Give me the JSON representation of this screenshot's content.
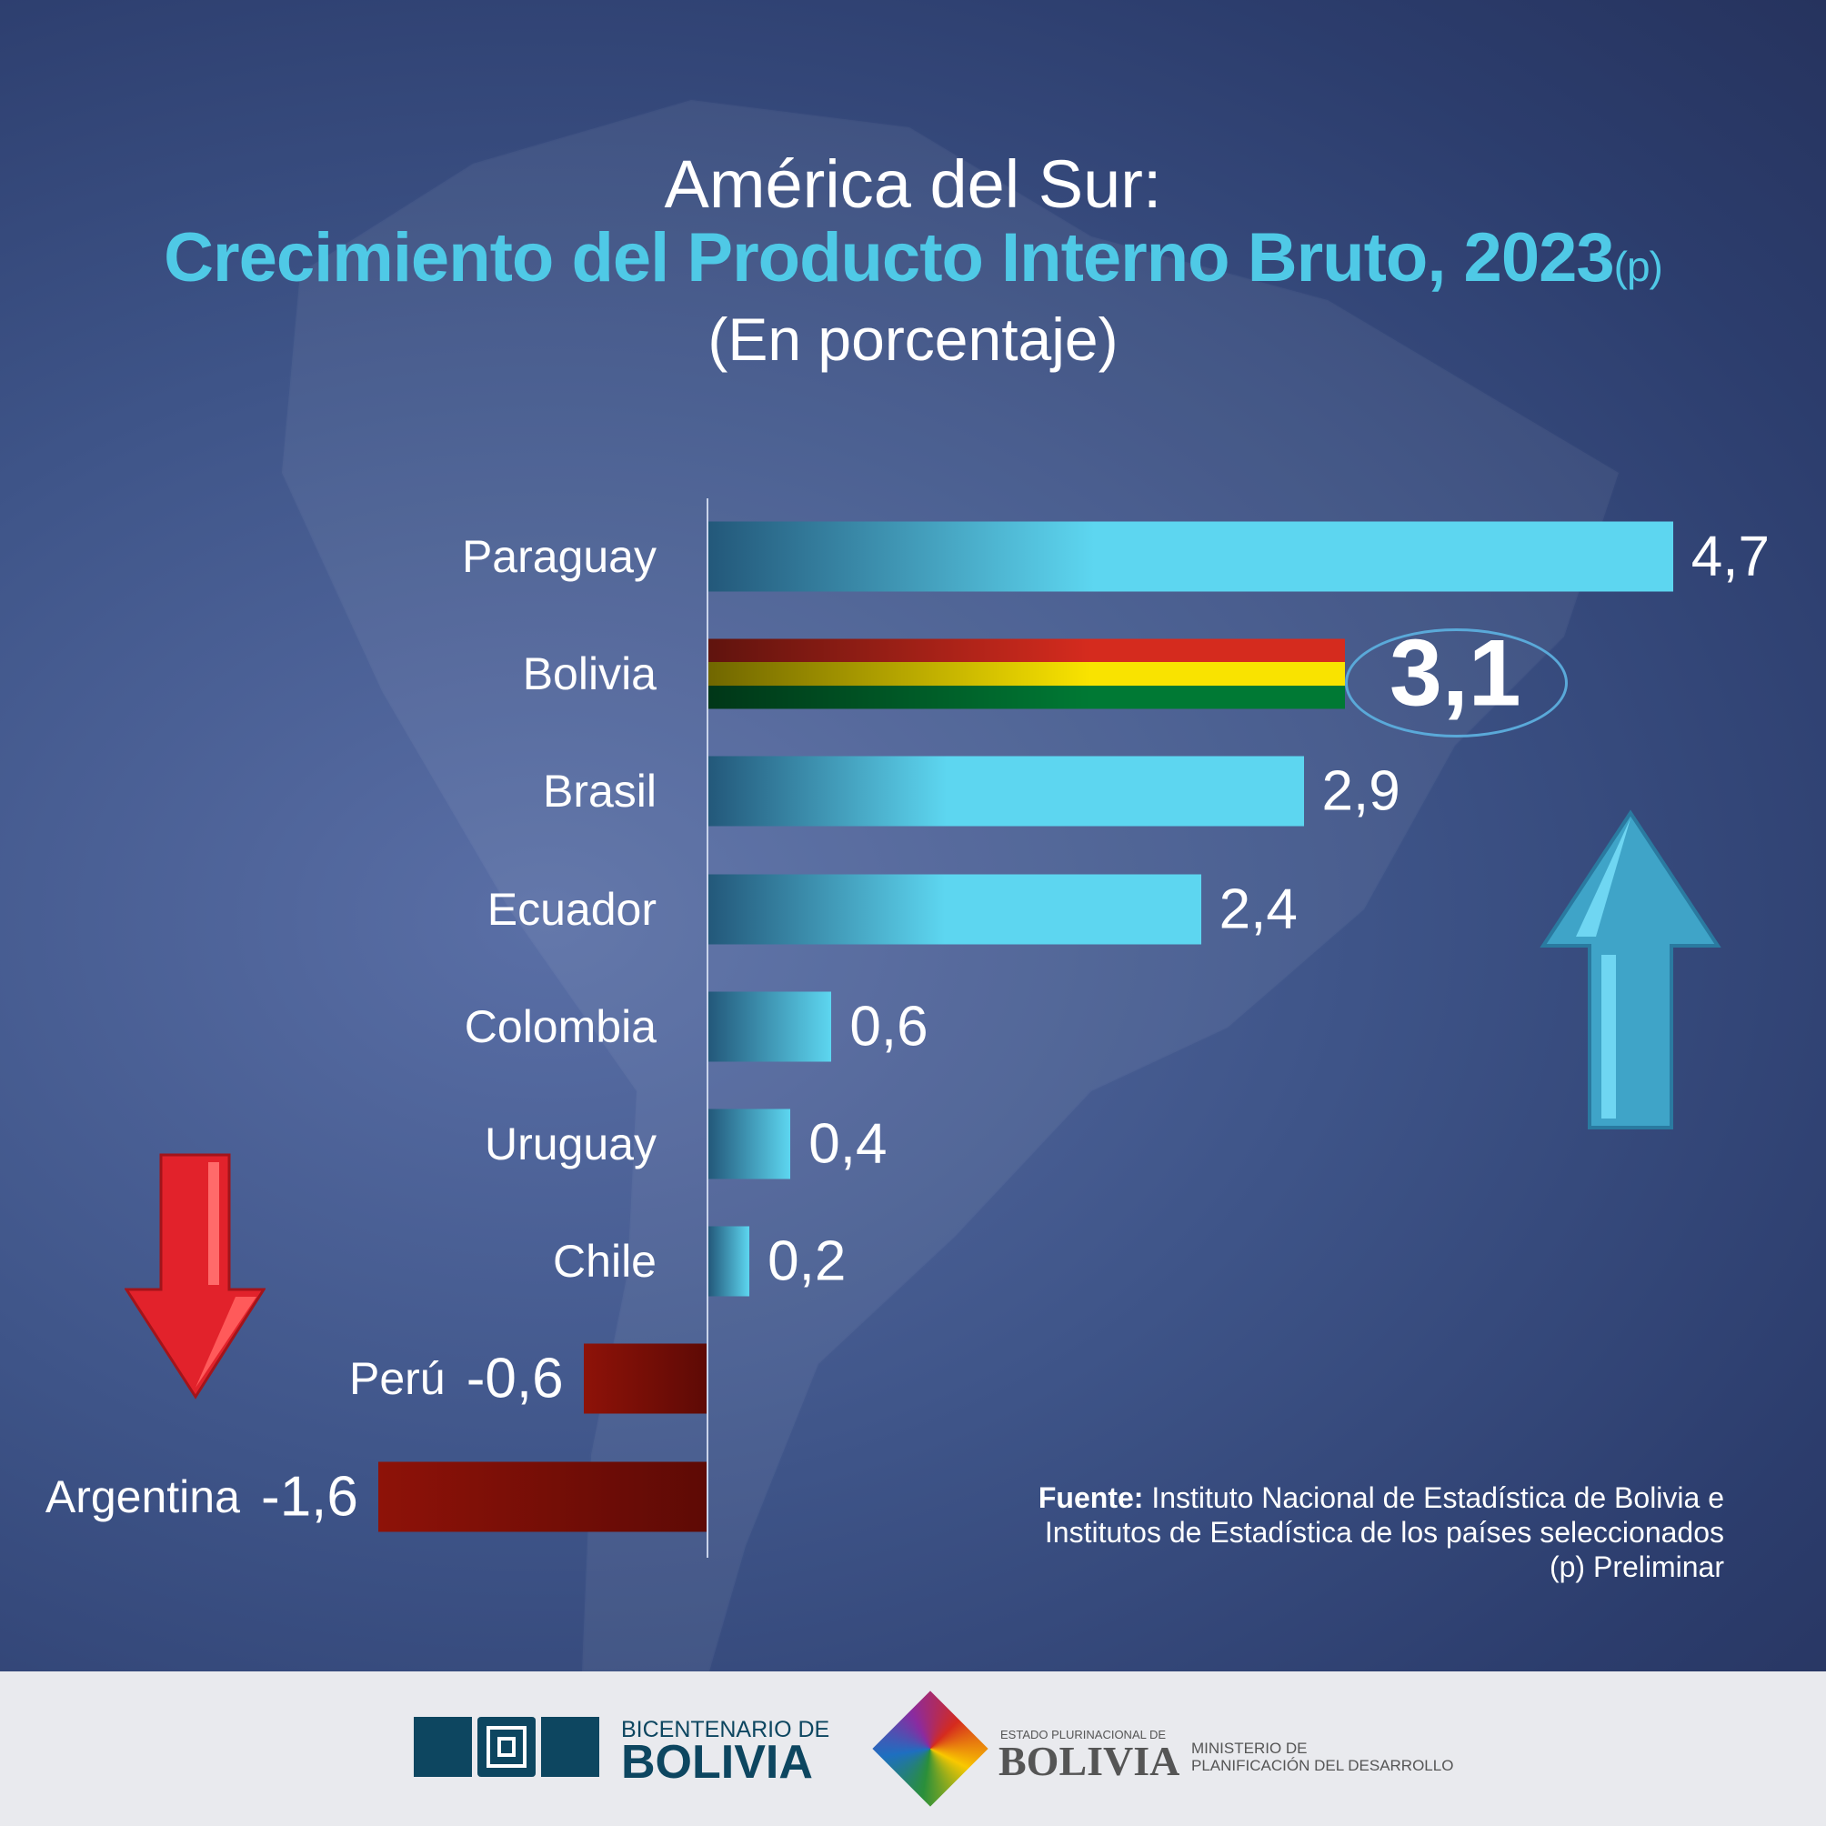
{
  "title": {
    "line1": "América del Sur:",
    "line2": "Crecimiento del Producto Interno Bruto, 2023",
    "line2_suffix": "(p)",
    "line3": "(En porcentaje)"
  },
  "chart_data": {
    "type": "bar",
    "orientation": "horizontal",
    "categories": [
      "Paraguay",
      "Bolivia",
      "Brasil",
      "Ecuador",
      "Colombia",
      "Uruguay",
      "Chile",
      "Perú",
      "Argentina"
    ],
    "values": [
      4.7,
      3.1,
      2.9,
      2.4,
      0.6,
      0.4,
      0.2,
      -0.6,
      -1.6
    ],
    "data_labels": [
      "4,7",
      "3,1",
      "2,9",
      "2,4",
      "0,6",
      "0,4",
      "0,2",
      "-0,6",
      "-1,6"
    ],
    "highlight": "Bolivia",
    "xlim": [
      -1.6,
      4.7
    ],
    "grid": false,
    "colors": {
      "positive": "#5dd6f0",
      "positive_dark": "#23587a",
      "negative": "#8e1208",
      "negative_dark": "#5e0a05",
      "bolivia_flag": [
        "#d52b1e",
        "#f9e300",
        "#007934"
      ]
    }
  },
  "source": {
    "label": "Fuente:",
    "line1": " Instituto Nacional de Estadística de Bolivia e",
    "line2": "Institutos de Estadística de los países seleccionados",
    "line3": "(p) Preliminar"
  },
  "footer": {
    "bicentenario_small": "BICENTENARIO DE",
    "bicentenario_big": "BOLIVIA",
    "estado_small": "ESTADO PLURINACIONAL DE",
    "estado_big": "BOLIVIA",
    "ministerio_1": "MINISTERIO DE",
    "ministerio_2": "PLANIFICACIÓN DEL DESARROLLO"
  },
  "icons": [
    "arrow-up-icon",
    "arrow-down-icon",
    "bicentenario-logo",
    "estado-plurinacional-logo"
  ]
}
